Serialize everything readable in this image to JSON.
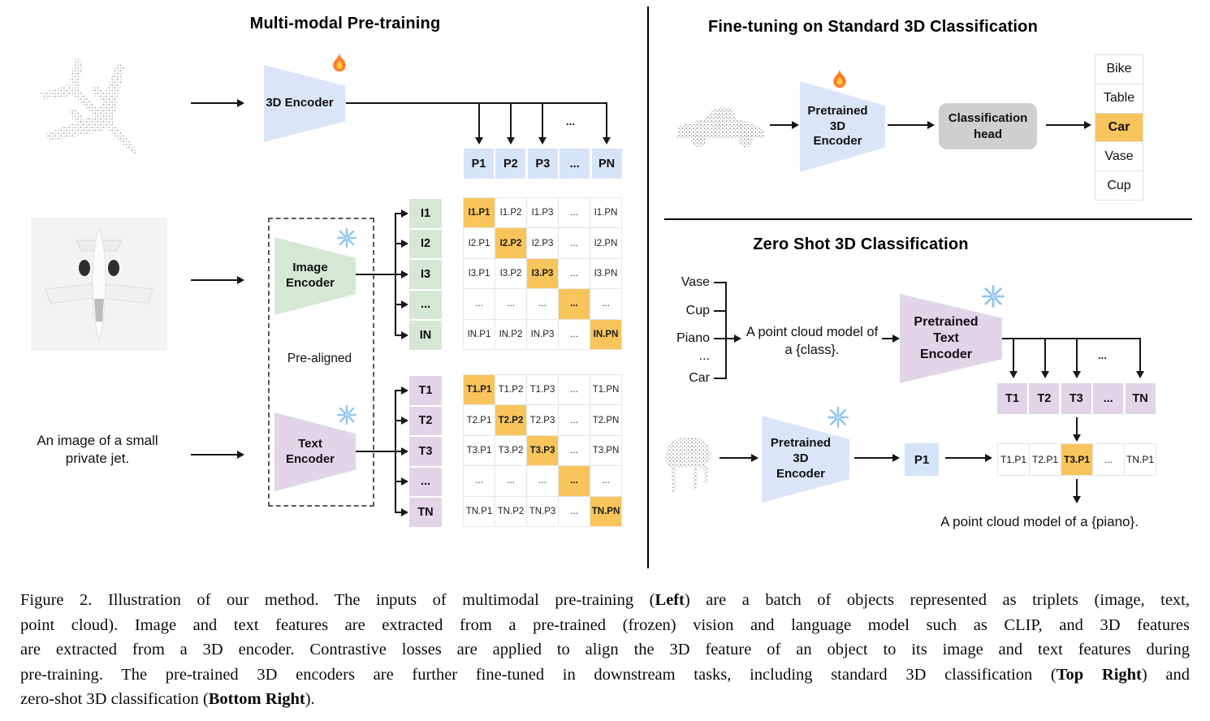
{
  "left": {
    "title": "Multi-modal Pre-training",
    "encoder_3d_label": "3D Encoder",
    "image_encoder": {
      "line1": "Image",
      "line2": "Encoder"
    },
    "text_encoder": {
      "line1": "Text",
      "line2": "Encoder"
    },
    "pre_aligned_label": "Pre-aligned",
    "text_input": {
      "line1": "An image of a small",
      "line2": "private jet."
    },
    "p_row": [
      "P1",
      "P2",
      "P3",
      "...",
      "PN"
    ],
    "p_row_dots": "...",
    "i_labels": [
      "I1",
      "I2",
      "I3",
      "...",
      "IN"
    ],
    "t_labels": [
      "T1",
      "T2",
      "T3",
      "...",
      "TN"
    ],
    "i_matrix": [
      [
        "I1.P1",
        "I1.P2",
        "I1.P3",
        "...",
        "I1.PN"
      ],
      [
        "I2.P1",
        "I2.P2",
        "I2.P3",
        "...",
        "I2.PN"
      ],
      [
        "I3.P1",
        "I3.P2",
        "I3.P3",
        "...",
        "I3.PN"
      ],
      [
        "...",
        "...",
        "...",
        "...",
        "..."
      ],
      [
        "IN.P1",
        "IN.P2",
        "IN.P3",
        "...",
        "IN.PN"
      ]
    ],
    "t_matrix": [
      [
        "T1.P1",
        "T1.P2",
        "T1.P3",
        "...",
        "T1.PN"
      ],
      [
        "T2.P1",
        "T2.P2",
        "T2.P3",
        "...",
        "T2.PN"
      ],
      [
        "T3.P1",
        "T3.P2",
        "T3.P3",
        "...",
        "T3.PN"
      ],
      [
        "...",
        "...",
        "...",
        "...",
        "..."
      ],
      [
        "TN.P1",
        "TN.P2",
        "TN.P3",
        "...",
        "TN.PN"
      ]
    ]
  },
  "top_right": {
    "title": "Fine-tuning on Standard 3D Classification",
    "encoder": {
      "line1": "Pretrained 3D",
      "line2": "Encoder"
    },
    "head": {
      "line1": "Classification",
      "line2": "head"
    },
    "classes": [
      "Bike",
      "Table",
      "Car",
      "Vase",
      "Cup"
    ],
    "predicted_class": "Car"
  },
  "bottom_right": {
    "title": "Zero Shot 3D Classification",
    "class_list": [
      "Vase",
      "Cup",
      "Piano",
      "...",
      "Car"
    ],
    "prompt": {
      "line1": "A point cloud model of",
      "line2": "a {class}."
    },
    "text_encoder": {
      "line1": "Pretrained Text",
      "line2": "Encoder"
    },
    "t_row": [
      "T1",
      "T2",
      "T3",
      "...",
      "TN"
    ],
    "t_row_dots": "...",
    "encoder_3d": {
      "line1": "Pretrained 3D",
      "line2": "Encoder"
    },
    "p1_label": "P1",
    "result_row": [
      "T1.P1",
      "T2.P1",
      "T3.P1",
      "...",
      "TN.P1"
    ],
    "predicted_result": "T3.P1",
    "output_text": "A point cloud model of a {piano}."
  },
  "caption": {
    "lines": [
      [
        {
          "t": "Figure 2. Illustration of our method. The inputs of multimodal pre-training ("
        },
        {
          "t": "Left",
          "b": true
        },
        {
          "t": ") are a batch of objects represented as triplets (image, text,"
        }
      ],
      [
        {
          "t": "point cloud). Image and text features are extracted from a pre-trained (frozen) vision and language model such as CLIP, and 3D features"
        }
      ],
      [
        {
          "t": "are extracted from a 3D encoder. Contrastive losses are applied to align the 3D feature of an object to its image and text features during"
        }
      ],
      [
        {
          "t": "pre-training. The pre-trained 3D encoders are further fine-tuned in downstream tasks, including standard 3D classification ("
        },
        {
          "t": "Top Right",
          "b": true
        },
        {
          "t": ") and"
        }
      ],
      [
        {
          "t": "zero-shot 3D classification ("
        },
        {
          "t": "Bottom Right",
          "b": true
        },
        {
          "t": ")."
        }
      ]
    ]
  },
  "icons": {
    "trainable": "flame-icon",
    "frozen": "snowflake-icon"
  },
  "colors": {
    "encoder_blue": "#DAE6F8",
    "encoder_green": "#D5E8D4",
    "encoder_purple": "#E1D5E7",
    "cell_blue": "#D6E4F8",
    "highlight_orange": "#F8C55C",
    "head_gray": "#CFCFCF"
  }
}
